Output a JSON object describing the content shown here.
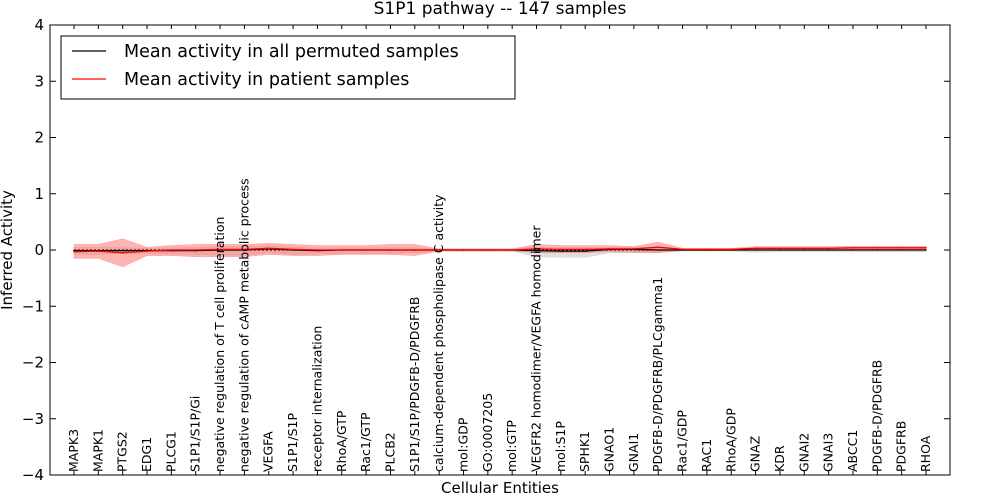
{
  "chart_data": {
    "type": "line",
    "title": "S1P1 pathway -- 147 samples",
    "xlabel": "Cellular Entities",
    "ylabel": "Inferred Activity",
    "ylim": [
      -4,
      4
    ],
    "yticks": [
      "−4",
      "−3",
      "−2",
      "−1",
      "0",
      "1",
      "2",
      "3",
      "4"
    ],
    "ytick_values": [
      -4,
      -3,
      -2,
      -1,
      0,
      1,
      2,
      3,
      4
    ],
    "categories": [
      "MAPK3",
      "MAPK1",
      "PTGS2",
      "EDG1",
      "PLCG1",
      "S1P1/S1P/Gi",
      "negative regulation of T cell proliferation",
      "negative regulation of cAMP metabolic process",
      "VEGFA",
      "S1P1/S1P",
      "receptor internalization",
      "RhoA/GTP",
      "Rac1/GTP",
      "PLCB2",
      "S1P1/S1P/PDGFB-D/PDGFRB",
      "calcium-dependent phospholipase C activity",
      "mol:GDP",
      "GO:0007205",
      "mol:GTP",
      "VEGFR2 homodimer/VEGFA homodimer",
      "mol:S1P",
      "SPHK1",
      "GNAO1",
      "GNAI1",
      "PDGFB-D/PDGFRB/PLCgamma1",
      "Rac1/GDP",
      "RAC1",
      "RhoA/GDP",
      "GNAZ",
      "KDR",
      "GNAI2",
      "GNAI3",
      "ABCC1",
      "PDGFB-D/PDGFRB",
      "PDGFRB",
      "RHOA"
    ],
    "legend_position": "top-left",
    "series": [
      {
        "name": "Mean activity in all permuted samples",
        "color": "#000000",
        "band_color": "#bbbbbb",
        "values": [
          -0.01,
          -0.01,
          -0.01,
          -0.01,
          -0.01,
          -0.01,
          0.0,
          0.0,
          0.02,
          0.0,
          -0.01,
          0.0,
          0.0,
          0.0,
          0.0,
          0.0,
          0.0,
          0.0,
          0.0,
          -0.01,
          -0.02,
          -0.02,
          0.01,
          0.01,
          0.0,
          0.0,
          0.0,
          0.0,
          0.0,
          0.0,
          0.0,
          0.0,
          0.0,
          0.0,
          0.0,
          0.0
        ],
        "upper": [
          0.05,
          0.05,
          0.04,
          0.03,
          0.04,
          0.05,
          0.06,
          0.06,
          0.07,
          0.05,
          0.04,
          0.04,
          0.04,
          0.04,
          0.04,
          0.02,
          0.02,
          0.02,
          0.02,
          0.05,
          0.05,
          0.05,
          0.05,
          0.05,
          0.03,
          0.02,
          0.02,
          0.02,
          0.03,
          0.03,
          0.03,
          0.03,
          0.03,
          0.03,
          0.03,
          0.03
        ],
        "lower": [
          -0.08,
          -0.08,
          -0.07,
          -0.06,
          -0.07,
          -0.08,
          -0.09,
          -0.09,
          -0.05,
          -0.08,
          -0.07,
          -0.06,
          -0.06,
          -0.06,
          -0.05,
          -0.02,
          -0.02,
          -0.02,
          -0.02,
          -0.12,
          -0.13,
          -0.13,
          -0.05,
          -0.05,
          -0.04,
          -0.02,
          -0.02,
          -0.02,
          -0.04,
          -0.03,
          -0.03,
          -0.03,
          -0.03,
          -0.03,
          -0.03,
          -0.03
        ]
      },
      {
        "name": "Mean activity in patient samples",
        "color": "#ff0000",
        "band_color": "#ff7777",
        "values": [
          -0.03,
          -0.02,
          -0.05,
          -0.02,
          0.0,
          0.0,
          0.01,
          0.01,
          0.03,
          0.01,
          0.0,
          0.0,
          0.0,
          0.0,
          0.0,
          0.0,
          0.0,
          0.0,
          0.0,
          0.02,
          0.01,
          0.01,
          0.02,
          0.02,
          0.05,
          0.01,
          0.01,
          0.01,
          0.03,
          0.03,
          0.03,
          0.03,
          0.04,
          0.04,
          0.04,
          0.04
        ],
        "upper": [
          0.1,
          0.1,
          0.2,
          0.05,
          0.08,
          0.1,
          0.1,
          0.1,
          0.12,
          0.1,
          0.08,
          0.08,
          0.08,
          0.1,
          0.1,
          0.02,
          0.02,
          0.02,
          0.02,
          0.1,
          0.08,
          0.08,
          0.08,
          0.06,
          0.14,
          0.03,
          0.03,
          0.03,
          0.06,
          0.06,
          0.06,
          0.06,
          0.07,
          0.07,
          0.07,
          0.07
        ],
        "lower": [
          -0.15,
          -0.15,
          -0.3,
          -0.1,
          -0.1,
          -0.12,
          -0.12,
          -0.12,
          -0.08,
          -0.1,
          -0.1,
          -0.08,
          -0.08,
          -0.08,
          -0.1,
          -0.02,
          -0.02,
          -0.02,
          -0.02,
          -0.05,
          -0.05,
          -0.05,
          -0.03,
          -0.04,
          -0.05,
          -0.01,
          -0.01,
          -0.01,
          0.0,
          0.0,
          0.0,
          0.0,
          0.01,
          0.01,
          0.01,
          0.01
        ]
      }
    ]
  }
}
